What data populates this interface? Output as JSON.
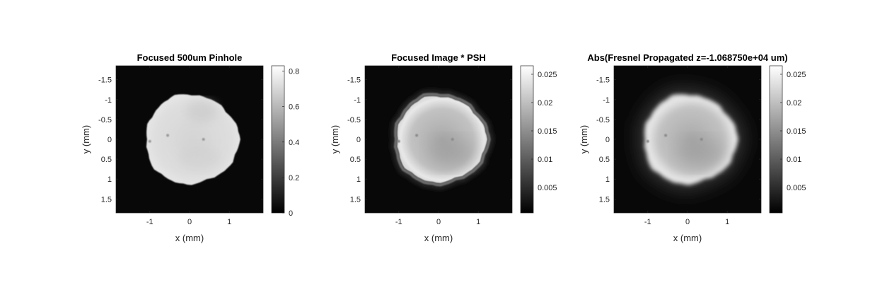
{
  "chart_data": [
    {
      "type": "heatmap",
      "title": "Focused 500um Pinhole",
      "xlabel": "x (mm)",
      "ylabel": "y (mm)",
      "x_ticks": [
        "-1",
        "0",
        "1"
      ],
      "y_ticks": [
        "-1.5",
        "-1",
        "-0.5",
        "0",
        "0.5",
        "1",
        "1.5"
      ],
      "xlim": [
        -1.85,
        1.85
      ],
      "ylim": [
        -1.85,
        1.85
      ],
      "colormap": "gray",
      "colorbar": {
        "ticks": [
          "0",
          "0.2",
          "0.4",
          "0.6",
          "0.8"
        ],
        "min": 0,
        "max": 0.83
      },
      "spot": {
        "shape": "irregular disk",
        "center": [
          0.05,
          0.0
        ],
        "radius": 1.15,
        "level": 0.72,
        "edge": "sharp"
      }
    },
    {
      "type": "heatmap",
      "title": "Focused Image * PSH",
      "xlabel": "x (mm)",
      "ylabel": "y (mm)",
      "x_ticks": [
        "-1",
        "0",
        "1"
      ],
      "y_ticks": [
        "-1.5",
        "-1",
        "-0.5",
        "0",
        "0.5",
        "1",
        "1.5"
      ],
      "xlim": [
        -1.85,
        1.85
      ],
      "ylim": [
        -1.85,
        1.85
      ],
      "colormap": "gray",
      "colorbar": {
        "ticks": [
          "0.005",
          "0.01",
          "0.015",
          "0.02",
          "0.025"
        ],
        "min": 0.0005,
        "max": 0.0265
      },
      "spot": {
        "shape": "irregular disk",
        "center": [
          0.05,
          0.0
        ],
        "radius": 1.15,
        "level": 0.021,
        "edge": "bright rim with dark outer ring"
      }
    },
    {
      "type": "heatmap",
      "title": "Abs(Fresnel Propagated z=-1.068750e+04 um)",
      "xlabel": "x (mm)",
      "ylabel": "y (mm)",
      "x_ticks": [
        "-1",
        "0",
        "1"
      ],
      "y_ticks": [
        "-1.5",
        "-1",
        "-0.5",
        "0",
        "0.5",
        "1",
        "1.5"
      ],
      "xlim": [
        -1.85,
        1.85
      ],
      "ylim": [
        -1.85,
        1.85
      ],
      "colormap": "gray",
      "colorbar": {
        "ticks": [
          "0.005",
          "0.01",
          "0.015",
          "0.02",
          "0.025"
        ],
        "min": 0.0005,
        "max": 0.0265
      },
      "spot": {
        "shape": "irregular disk",
        "center": [
          0.05,
          0.0
        ],
        "radius": 1.15,
        "level": 0.021,
        "edge": "bright rim with diffuse halo"
      }
    }
  ]
}
